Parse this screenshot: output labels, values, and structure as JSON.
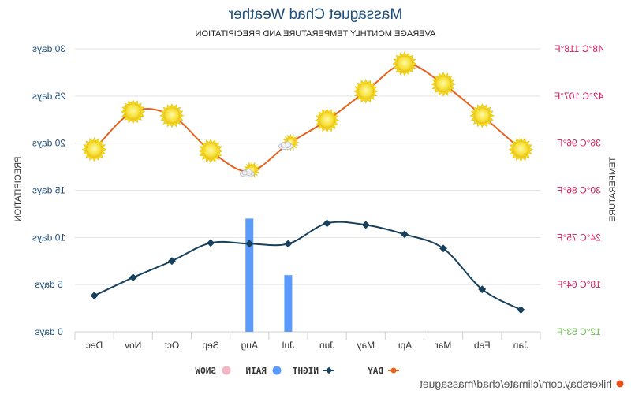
{
  "chart_data": {
    "type": "line",
    "title": "Massaguet Chad Weather",
    "subtitle": "AVERAGE MONTHLY TEMPERATURE AND PRECIPITATION",
    "categories": [
      "Jan",
      "Feb",
      "Mar",
      "Apr",
      "May",
      "Jun",
      "Jul",
      "Aug",
      "Sep",
      "Oct",
      "Nov",
      "Dec"
    ],
    "y_left": {
      "label": "PRECIPITATION",
      "ticks": [
        "0 days",
        "5 days",
        "10 days",
        "15 days",
        "20 days",
        "25 days",
        "30 days"
      ],
      "range": [
        0,
        30
      ]
    },
    "y_right": {
      "label": "TEMPERATURE",
      "ticks": [
        "12°C 53°F",
        "18°C 64°F",
        "24°C 75°F",
        "30°C 86°F",
        "36°C 96°F",
        "42°C 107°F",
        "48°C 118°F"
      ],
      "range_c": [
        12,
        48
      ]
    },
    "series": [
      {
        "name": "DAY",
        "unit": "°C",
        "color": "#e8601c",
        "values": [
          35.2,
          39.5,
          43.5,
          46.1,
          42.6,
          38.9,
          35.9,
          32.4,
          35.0,
          39.5,
          40.0,
          35.2
        ]
      },
      {
        "name": "NIGHT",
        "unit": "°C",
        "color": "#16405c",
        "values": [
          14.8,
          17.4,
          22.6,
          24.4,
          25.6,
          25.8,
          23.2,
          23.2,
          23.3,
          21.0,
          18.9,
          16.6
        ]
      },
      {
        "name": "RAIN",
        "unit": "days",
        "color": "#5b9bff",
        "values": [
          0,
          0,
          0,
          0,
          0,
          0,
          6,
          12,
          0,
          0,
          0,
          0
        ]
      },
      {
        "name": "SNOW",
        "unit": "days",
        "color": "#f4b6c2",
        "values": [
          0,
          0,
          0,
          0,
          0,
          0,
          0,
          0,
          0,
          0,
          0,
          0
        ]
      }
    ],
    "weather_icons": [
      "sun",
      "sun",
      "sun",
      "sun",
      "sun",
      "sun",
      "partly-cloudy",
      "partly-cloudy",
      "sun",
      "sun",
      "sun",
      "sun"
    ],
    "grid": true,
    "legend": "bottom-center",
    "x_axis_reversed": true
  },
  "source": "hikersbay.com/climate/chad/massaguet"
}
